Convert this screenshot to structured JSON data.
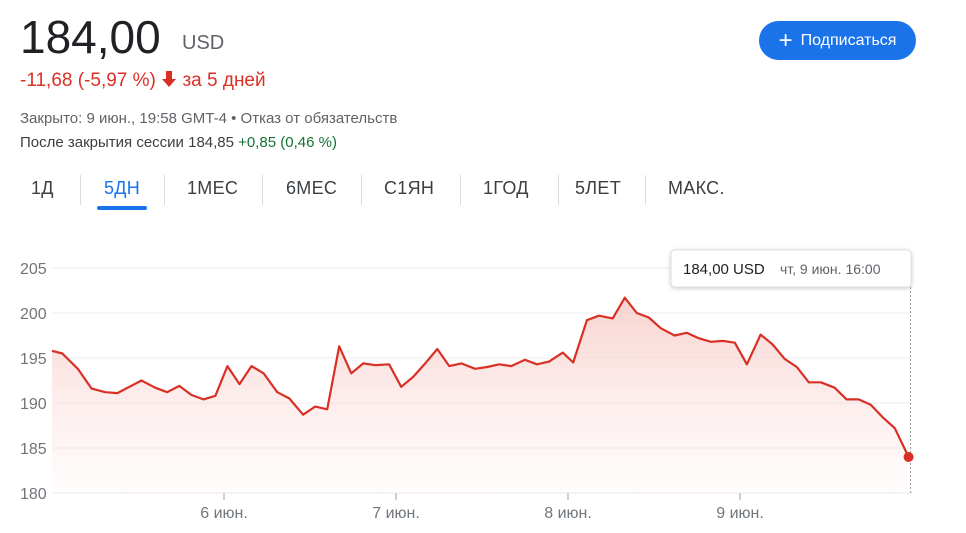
{
  "quote": {
    "price": "184,00",
    "currency": "USD",
    "change": "-11,68 (-5,97 %)",
    "period": "за 5 дней",
    "closed": "Закрыто: 9 июн., 19:58 GMT-4",
    "disclaimer": "Отказ от обязательств",
    "after_hours_label": "После закрытия сессии 184,85",
    "after_hours_change": "+0,85 (0,46 %)"
  },
  "button": "Подписаться",
  "tabs": [
    "1Д",
    "5ДН",
    "1МЕС",
    "6МЕС",
    "С1ЯН",
    "1ГОД",
    "5ЛЕТ",
    "МАКС."
  ],
  "selected_tab": 1,
  "chart_data": {
    "type": "line",
    "color": "#d93025",
    "grid": true,
    "x": [
      0,
      0.06,
      0.15,
      0.23,
      0.31,
      0.38,
      0.45,
      0.52,
      0.6,
      0.67,
      0.74,
      0.81,
      0.88,
      0.95,
      1.02,
      1.09,
      1.16,
      1.23,
      1.31,
      1.38,
      1.46,
      1.53,
      1.6,
      1.67,
      1.74,
      1.81,
      1.88,
      1.96,
      2.03,
      2.1,
      2.17,
      2.24,
      2.31,
      2.38,
      2.46,
      2.53,
      2.6,
      2.67,
      2.75,
      2.82,
      2.89,
      2.97,
      3.03,
      3.11,
      3.18,
      3.26,
      3.33,
      3.4,
      3.47,
      3.54,
      3.62,
      3.69,
      3.76,
      3.83,
      3.9,
      3.97,
      4.04,
      4.12,
      4.19,
      4.26,
      4.33,
      4.4,
      4.47,
      4.55,
      4.62,
      4.69,
      4.76,
      4.83,
      4.9,
      4.98
    ],
    "values": [
      195.8,
      195.5,
      193.8,
      191.6,
      191.2,
      191.1,
      191.8,
      192.5,
      191.7,
      191.2,
      191.9,
      190.9,
      190.4,
      190.8,
      194.1,
      192.1,
      194.1,
      193.3,
      191.2,
      190.5,
      188.7,
      189.6,
      189.3,
      196.3,
      193.3,
      194.4,
      194.2,
      194.3,
      191.8,
      192.9,
      194.4,
      196.0,
      194.1,
      194.4,
      193.8,
      194.0,
      194.3,
      194.1,
      194.8,
      194.3,
      194.6,
      195.6,
      194.5,
      199.2,
      199.7,
      199.4,
      201.7,
      200.0,
      199.5,
      198.3,
      197.5,
      197.8,
      197.2,
      196.8,
      196.9,
      196.7,
      194.3,
      197.6,
      196.5,
      194.9,
      194.0,
      192.3,
      192.3,
      191.7,
      190.4,
      190.4,
      189.8,
      188.4,
      187.2,
      184.0
    ],
    "xlim": [
      0,
      5
    ],
    "xticks": [
      {
        "value": 1,
        "label": "6 июн."
      },
      {
        "value": 2,
        "label": "7 июн."
      },
      {
        "value": 3,
        "label": "8 июн."
      },
      {
        "value": 4,
        "label": "9 июн."
      }
    ],
    "ylim": [
      180,
      205
    ],
    "yticks": [
      180,
      185,
      190,
      195,
      200,
      205
    ],
    "tooltip": {
      "price": "184,00 USD",
      "time": "чт, 9 июн. 16:00"
    }
  }
}
